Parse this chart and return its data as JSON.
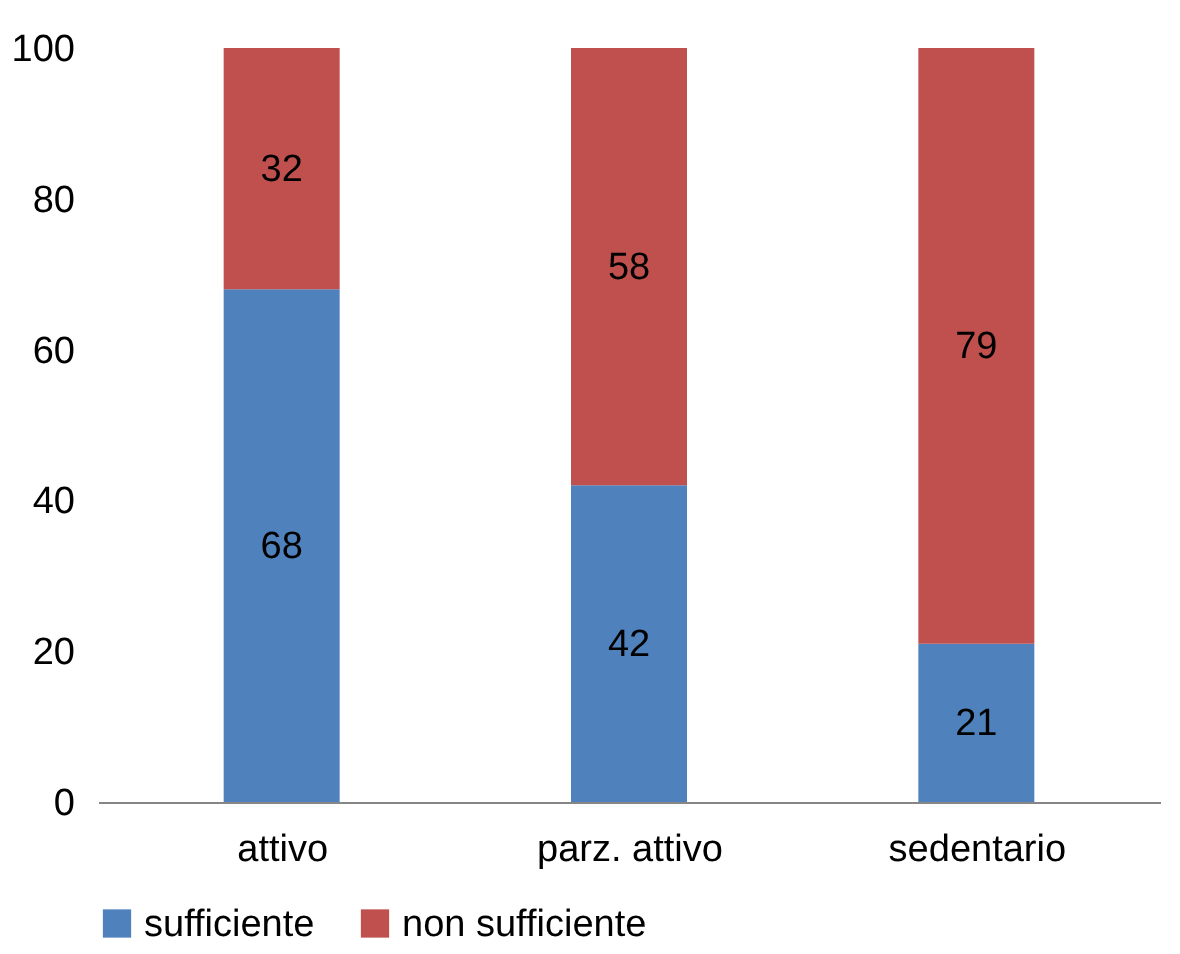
{
  "chart_data": {
    "type": "bar",
    "stacked": true,
    "categories": [
      "attivo",
      "parz. attivo",
      "sedentario"
    ],
    "series": [
      {
        "name": "sufficiente",
        "color": "#4f81bd",
        "values": [
          68,
          42,
          21
        ]
      },
      {
        "name": "non sufficiente",
        "color": "#c0504d",
        "values": [
          32,
          58,
          79
        ]
      }
    ],
    "ylim": [
      0,
      100
    ],
    "yticks": [
      0,
      20,
      40,
      60,
      80,
      100
    ],
    "data_labels": true,
    "legend": "bottom",
    "grid": false
  }
}
